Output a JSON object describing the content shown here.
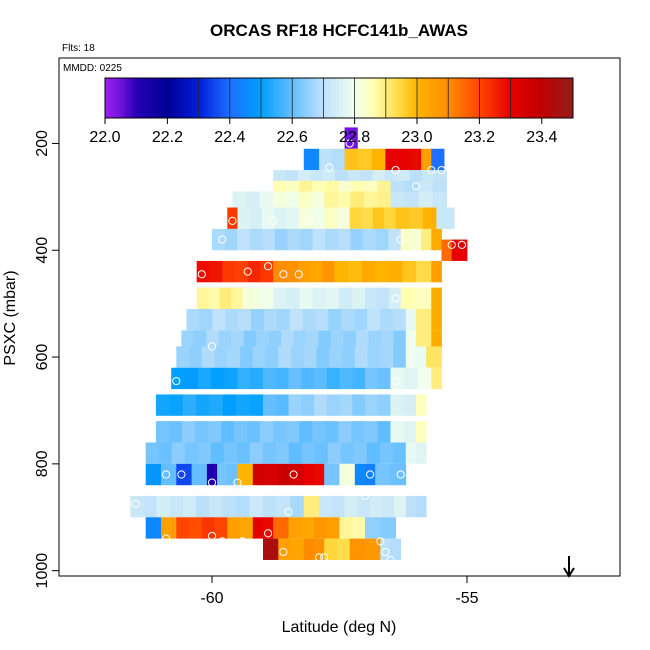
{
  "chart_data": {
    "type": "heatmap",
    "title": "ORCAS RF18 HCFC141b_AWAS",
    "flights_label": "Flts: 18",
    "date_label": "MMDD: 0225",
    "xlabel": "Latitude (deg N)",
    "ylabel": "PSXC (mbar)",
    "xlim": [
      -63.0,
      -52.0
    ],
    "ylim": [
      1010,
      40
    ],
    "x_ticks": [
      -60,
      -55
    ],
    "x_tick_labels": [
      "-60",
      "-55"
    ],
    "y_ticks": [
      200,
      400,
      600,
      800,
      1000
    ],
    "y_tick_labels": [
      "200",
      "400",
      "600",
      "800",
      "1000"
    ],
    "colorbar": {
      "min": 22.0,
      "max": 23.5,
      "ticks": [
        22.0,
        22.2,
        22.4,
        22.6,
        22.8,
        23.0,
        23.2,
        23.4
      ],
      "tick_labels": [
        "22.0",
        "22.2",
        "22.4",
        "22.6",
        "22.8",
        "23.0",
        "23.2",
        "23.4"
      ]
    },
    "cell_size": {
      "lat": 0.25,
      "pressure": 20
    },
    "rows": [
      {
        "p": 190,
        "cells": [
          [
            -57.4,
            -57.15,
            22.05
          ]
        ]
      },
      {
        "p": 230,
        "cells": [
          [
            -58.2,
            -57.9,
            22.45
          ],
          [
            -57.9,
            -57.4,
            22.7
          ],
          [
            -57.4,
            -56.6,
            22.98
          ],
          [
            -56.6,
            -56.4,
            23.3
          ],
          [
            -56.4,
            -55.9,
            23.3
          ],
          [
            -55.9,
            -55.7,
            23.05
          ],
          [
            -55.7,
            -55.45,
            22.4
          ]
        ]
      },
      {
        "p": 270,
        "cells": [
          [
            -58.8,
            -55.4,
            22.72
          ]
        ]
      },
      {
        "p": 290,
        "cells": [
          [
            -58.8,
            -56.5,
            22.86
          ],
          [
            -56.5,
            -55.4,
            22.7
          ]
        ]
      },
      {
        "p": 310,
        "cells": [
          [
            -59.6,
            -58.8,
            22.76
          ],
          [
            -58.8,
            -57.8,
            22.82
          ],
          [
            -57.8,
            -56.5,
            22.88
          ],
          [
            -56.5,
            -55.4,
            22.72
          ]
        ]
      },
      {
        "p": 340,
        "cells": [
          [
            -59.7,
            -59.5,
            23.22
          ],
          [
            -59.5,
            -58.3,
            22.76
          ],
          [
            -58.3,
            -57.3,
            22.82
          ],
          [
            -57.3,
            -56.4,
            22.95
          ],
          [
            -56.4,
            -55.6,
            22.98
          ],
          [
            -55.6,
            -55.25,
            22.72
          ]
        ]
      },
      {
        "p": 380,
        "cells": [
          [
            -60.0,
            -56.3,
            22.68
          ],
          [
            -56.3,
            -55.9,
            22.84
          ],
          [
            -55.9,
            -55.7,
            22.9
          ],
          [
            -55.7,
            -55.5,
            23.02
          ]
        ]
      },
      {
        "p": 400,
        "cells": [
          [
            -55.5,
            -55.3,
            23.15
          ],
          [
            -55.3,
            -55.0,
            23.3
          ]
        ]
      },
      {
        "p": 440,
        "cells": [
          [
            -60.3,
            -59.8,
            23.28
          ],
          [
            -59.8,
            -58.8,
            23.22
          ],
          [
            -58.8,
            -58.3,
            23.1
          ],
          [
            -58.3,
            -57.6,
            23.05
          ],
          [
            -57.6,
            -56.0,
            23.0
          ],
          [
            -56.0,
            -55.7,
            22.94
          ],
          [
            -55.7,
            -55.5,
            23.05
          ]
        ]
      },
      {
        "p": 490,
        "cells": [
          [
            -60.3,
            -59.4,
            22.88
          ],
          [
            -59.4,
            -58.8,
            22.82
          ],
          [
            -58.8,
            -57.0,
            22.76
          ],
          [
            -57.0,
            -56.3,
            22.72
          ],
          [
            -56.3,
            -55.7,
            22.86
          ],
          [
            -55.7,
            -55.5,
            23.02
          ]
        ]
      },
      {
        "p": 530,
        "cells": [
          [
            -60.5,
            -56.2,
            22.68
          ],
          [
            -56.2,
            -56.0,
            22.78
          ],
          [
            -56.0,
            -55.7,
            22.9
          ],
          [
            -55.7,
            -55.5,
            23.02
          ]
        ]
      },
      {
        "p": 570,
        "cells": [
          [
            -60.6,
            -56.2,
            22.66
          ],
          [
            -56.2,
            -56.0,
            22.8
          ],
          [
            -56.0,
            -55.7,
            22.9
          ],
          [
            -55.7,
            -55.5,
            23.02
          ]
        ]
      },
      {
        "p": 600,
        "cells": [
          [
            -60.7,
            -56.2,
            22.66
          ],
          [
            -56.2,
            -55.8,
            22.8
          ],
          [
            -55.8,
            -55.5,
            22.92
          ]
        ]
      },
      {
        "p": 640,
        "cells": [
          [
            -60.8,
            -59.5,
            22.5
          ],
          [
            -59.5,
            -59.0,
            22.55
          ],
          [
            -59.0,
            -57.0,
            22.58
          ],
          [
            -57.0,
            -56.5,
            22.62
          ],
          [
            -56.5,
            -55.7,
            22.78
          ],
          [
            -55.7,
            -55.5,
            22.9
          ]
        ]
      },
      {
        "p": 690,
        "cells": [
          [
            -61.1,
            -59.0,
            22.52
          ],
          [
            -59.0,
            -58.5,
            22.6
          ],
          [
            -58.5,
            -56.5,
            22.66
          ],
          [
            -56.5,
            -56.0,
            22.76
          ],
          [
            -56.0,
            -55.8,
            22.85
          ]
        ]
      },
      {
        "p": 740,
        "cells": [
          [
            -61.1,
            -56.5,
            22.62
          ],
          [
            -56.5,
            -56.0,
            22.78
          ],
          [
            -56.0,
            -55.8,
            22.85
          ]
        ]
      },
      {
        "p": 780,
        "cells": [
          [
            -61.3,
            -56.2,
            22.62
          ],
          [
            -56.2,
            -55.8,
            22.78
          ]
        ]
      },
      {
        "p": 820,
        "cells": [
          [
            -61.3,
            -61.0,
            22.48
          ],
          [
            -61.0,
            -60.7,
            22.6
          ],
          [
            -60.7,
            -60.4,
            22.35
          ],
          [
            -60.4,
            -60.1,
            22.6
          ],
          [
            -60.1,
            -59.9,
            22.12
          ],
          [
            -59.9,
            -59.5,
            22.62
          ],
          [
            -59.5,
            -59.2,
            23.0
          ],
          [
            -59.2,
            -58.2,
            23.35
          ],
          [
            -58.2,
            -57.8,
            23.3
          ],
          [
            -57.8,
            -57.5,
            22.62
          ],
          [
            -57.5,
            -57.2,
            22.82
          ],
          [
            -57.2,
            -56.8,
            22.45
          ],
          [
            -56.8,
            -56.2,
            22.62
          ]
        ]
      },
      {
        "p": 880,
        "cells": [
          [
            -61.6,
            -59.8,
            22.72
          ],
          [
            -59.8,
            -58.2,
            22.7
          ],
          [
            -58.2,
            -57.9,
            22.9
          ],
          [
            -57.9,
            -56.9,
            22.72
          ],
          [
            -56.9,
            -56.2,
            22.74
          ],
          [
            -56.2,
            -55.8,
            22.7
          ]
        ]
      },
      {
        "p": 920,
        "cells": [
          [
            -61.3,
            -61.0,
            22.45
          ],
          [
            -61.0,
            -60.7,
            23.05
          ],
          [
            -60.7,
            -59.7,
            23.2
          ],
          [
            -59.7,
            -59.2,
            23.05
          ],
          [
            -59.2,
            -58.8,
            23.3
          ],
          [
            -58.8,
            -58.5,
            23.15
          ],
          [
            -58.5,
            -57.5,
            23.05
          ],
          [
            -57.5,
            -57.0,
            22.88
          ],
          [
            -57.0,
            -56.4,
            22.65
          ]
        ]
      },
      {
        "p": 960,
        "cells": [
          [
            -59.0,
            -58.7,
            23.45
          ],
          [
            -58.7,
            -58.2,
            23.05
          ],
          [
            -58.2,
            -57.8,
            23.1
          ],
          [
            -57.8,
            -57.3,
            22.95
          ],
          [
            -57.3,
            -56.7,
            23.08
          ],
          [
            -56.7,
            -56.3,
            22.7
          ]
        ]
      }
    ],
    "points": [
      [
        -57.3,
        200
      ],
      [
        -57.7,
        245
      ],
      [
        -56.4,
        250
      ],
      [
        -55.7,
        250
      ],
      [
        -55.5,
        250
      ],
      [
        -56.0,
        280
      ],
      [
        -59.6,
        345
      ],
      [
        -58.8,
        345
      ],
      [
        -58.1,
        345
      ],
      [
        -59.8,
        380
      ],
      [
        -56.3,
        380
      ],
      [
        -55.3,
        390
      ],
      [
        -55.1,
        390
      ],
      [
        -60.2,
        445
      ],
      [
        -59.3,
        440
      ],
      [
        -58.9,
        430
      ],
      [
        -58.6,
        445
      ],
      [
        -58.3,
        445
      ],
      [
        -56.4,
        490
      ],
      [
        -60.0,
        580
      ],
      [
        -60.7,
        645
      ],
      [
        -56.4,
        645
      ],
      [
        -61.2,
        720
      ],
      [
        -61.4,
        800
      ],
      [
        -60.9,
        820
      ],
      [
        -60.6,
        820
      ],
      [
        -60.0,
        835
      ],
      [
        -59.5,
        835
      ],
      [
        -58.4,
        820
      ],
      [
        -56.9,
        820
      ],
      [
        -56.3,
        820
      ],
      [
        -61.5,
        875
      ],
      [
        -58.5,
        890
      ],
      [
        -57.5,
        850
      ],
      [
        -57.0,
        860
      ],
      [
        -61.7,
        945
      ],
      [
        -61.6,
        945
      ],
      [
        -60.9,
        940
      ],
      [
        -60.0,
        935
      ],
      [
        -59.8,
        945
      ],
      [
        -59.4,
        945
      ],
      [
        -58.9,
        930
      ],
      [
        -58.6,
        965
      ],
      [
        -57.9,
        975
      ],
      [
        -57.8,
        975
      ],
      [
        -56.7,
        945
      ],
      [
        -56.6,
        965
      ],
      [
        -56.5,
        980
      ]
    ],
    "arrow_latitude": -53.0
  }
}
